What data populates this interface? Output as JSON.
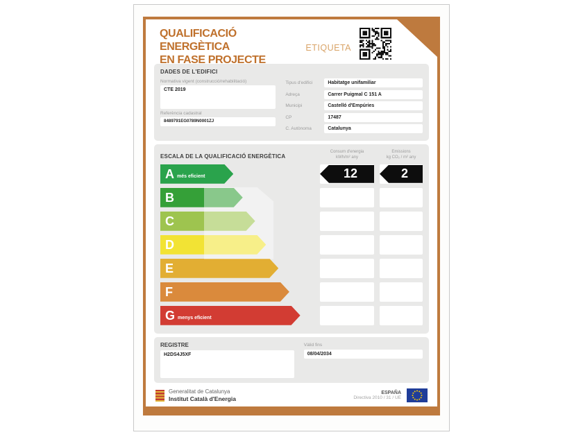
{
  "colors": {
    "accent_orange": "#be7a3e",
    "title_orange": "#bf702b",
    "etiqueta_orange": "#d9a468",
    "panel_gray": "#e9e9e8",
    "badge_black": "#0d0d0d",
    "eu_blue": "#1f3d99",
    "eu_star_yellow": "#ffcc00"
  },
  "header": {
    "title_line1": "QUALIFICACIÓ ENERGÈTICA",
    "title_line2": "EN FASE PROJECTE",
    "etiqueta_label": "ETIQUETA"
  },
  "building": {
    "section_title": "DADES DE L'EDIFICI",
    "normativa_label": "Normativa vigent (construcció/rehabilitació)",
    "normativa_value": "CTE 2019",
    "cadastral_label": "Referència cadastral",
    "cadastral_value": "8489791EG0789N0001ZJ",
    "fields": [
      {
        "label": "Tipus d'edifici",
        "value": "Habitatge unifamiliar"
      },
      {
        "label": "Adreça",
        "value": "Carrer Puigmal C 151 A"
      },
      {
        "label": "Municipi",
        "value": "Castelló d'Empúries"
      },
      {
        "label": "CP",
        "value": "17487"
      },
      {
        "label": "C. Autònoma",
        "value": "Catalunya"
      }
    ]
  },
  "scale": {
    "section_title": "ESCALA DE LA QUALIFICACIÓ ENERGÈTICA",
    "consum_header_line1": "Consum d'energia",
    "consum_header_line2": "kWh/m² any",
    "emissions_header_line1": "Emissions",
    "emissions_header_line2": "kg CO₂ / m² any",
    "rating_letter": "A",
    "consum_value": "12",
    "emissions_value": "2",
    "rows": [
      {
        "letter": "A",
        "label": "més eficient",
        "color": "#2aa34c",
        "width_pct": 47
      },
      {
        "letter": "B",
        "label": "",
        "color": "#35a038",
        "width_pct": 53
      },
      {
        "letter": "C",
        "label": "",
        "color": "#9ec44f",
        "width_pct": 61
      },
      {
        "letter": "D",
        "label": "",
        "color": "#f2e334",
        "width_pct": 68
      },
      {
        "letter": "E",
        "label": "",
        "color": "#e2ae33",
        "width_pct": 76
      },
      {
        "letter": "F",
        "label": "",
        "color": "#da8a3c",
        "width_pct": 83
      },
      {
        "letter": "G",
        "label": "menys eficient",
        "color": "#d23c33",
        "width_pct": 90
      }
    ]
  },
  "registre": {
    "section_title": "REGISTRE",
    "registre_value": "H2DS4J5XF",
    "valid_label": "Vàlid fins",
    "valid_value": "08/04/2034"
  },
  "footer": {
    "org_line1": "Generalitat de Catalunya",
    "org_line2": "Institut Català d'Energia",
    "country": "ESPAÑA",
    "directive": "Directiva 2010 / 31 / UE"
  }
}
